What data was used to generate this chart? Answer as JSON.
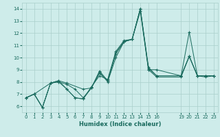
{
  "xlabel": "Humidex (Indice chaleur)",
  "bg_color": "#ceecea",
  "line_color": "#1a6b5e",
  "xlim": [
    -0.5,
    23.5
  ],
  "ylim": [
    5.5,
    14.5
  ],
  "yticks": [
    6,
    7,
    8,
    9,
    10,
    11,
    12,
    13,
    14
  ],
  "xticks": [
    0,
    1,
    2,
    3,
    4,
    5,
    6,
    7,
    8,
    9,
    10,
    11,
    12,
    13,
    14,
    15,
    16,
    19,
    20,
    21,
    22,
    23
  ],
  "xtick_labels": [
    "0",
    "1",
    "2",
    "3",
    "4",
    "5",
    "6",
    "7",
    "8",
    "9",
    "10",
    "11",
    "12",
    "13",
    "14",
    "15",
    "16",
    "19",
    "20",
    "21",
    "22",
    "23"
  ],
  "lines": [
    {
      "x": [
        0,
        1,
        2,
        3,
        4,
        5,
        6,
        7,
        8,
        9,
        10,
        11,
        12,
        13,
        14,
        15,
        16,
        19,
        20,
        21,
        22,
        23
      ],
      "y": [
        6.7,
        7.0,
        5.9,
        7.9,
        8.0,
        7.8,
        7.4,
        6.7,
        7.5,
        8.8,
        8.0,
        10.0,
        11.3,
        11.5,
        13.8,
        9.0,
        9.0,
        8.5,
        10.1,
        8.5,
        8.5,
        8.5
      ]
    },
    {
      "x": [
        0,
        1,
        2,
        3,
        4,
        5,
        6,
        7,
        8,
        9,
        10,
        11,
        12,
        13,
        14,
        15,
        16,
        19,
        20,
        21,
        22,
        23
      ],
      "y": [
        6.7,
        7.0,
        5.9,
        7.9,
        8.1,
        7.4,
        6.7,
        6.6,
        7.6,
        8.5,
        8.2,
        10.5,
        11.4,
        11.5,
        14.0,
        9.0,
        8.4,
        8.4,
        10.1,
        8.5,
        8.4,
        8.5
      ]
    },
    {
      "x": [
        0,
        1,
        3,
        4,
        5,
        7,
        8,
        9,
        10,
        11,
        12,
        13,
        14,
        15,
        16,
        19,
        20,
        21,
        22,
        23
      ],
      "y": [
        6.7,
        7.0,
        7.9,
        8.1,
        7.9,
        7.4,
        7.5,
        8.9,
        8.1,
        10.4,
        11.3,
        11.5,
        14.0,
        9.2,
        8.5,
        8.5,
        12.1,
        8.5,
        8.5,
        8.5
      ]
    },
    {
      "x": [
        0,
        1,
        2,
        3,
        4,
        5,
        6,
        7,
        8,
        9,
        10,
        11,
        12,
        13,
        14,
        15,
        16,
        19,
        20,
        21,
        22,
        23
      ],
      "y": [
        6.7,
        7.0,
        5.9,
        7.9,
        8.0,
        7.4,
        6.7,
        6.6,
        7.5,
        8.7,
        8.1,
        10.3,
        11.3,
        11.5,
        14.0,
        9.1,
        8.5,
        8.5,
        10.1,
        8.5,
        8.5,
        8.5
      ]
    }
  ]
}
